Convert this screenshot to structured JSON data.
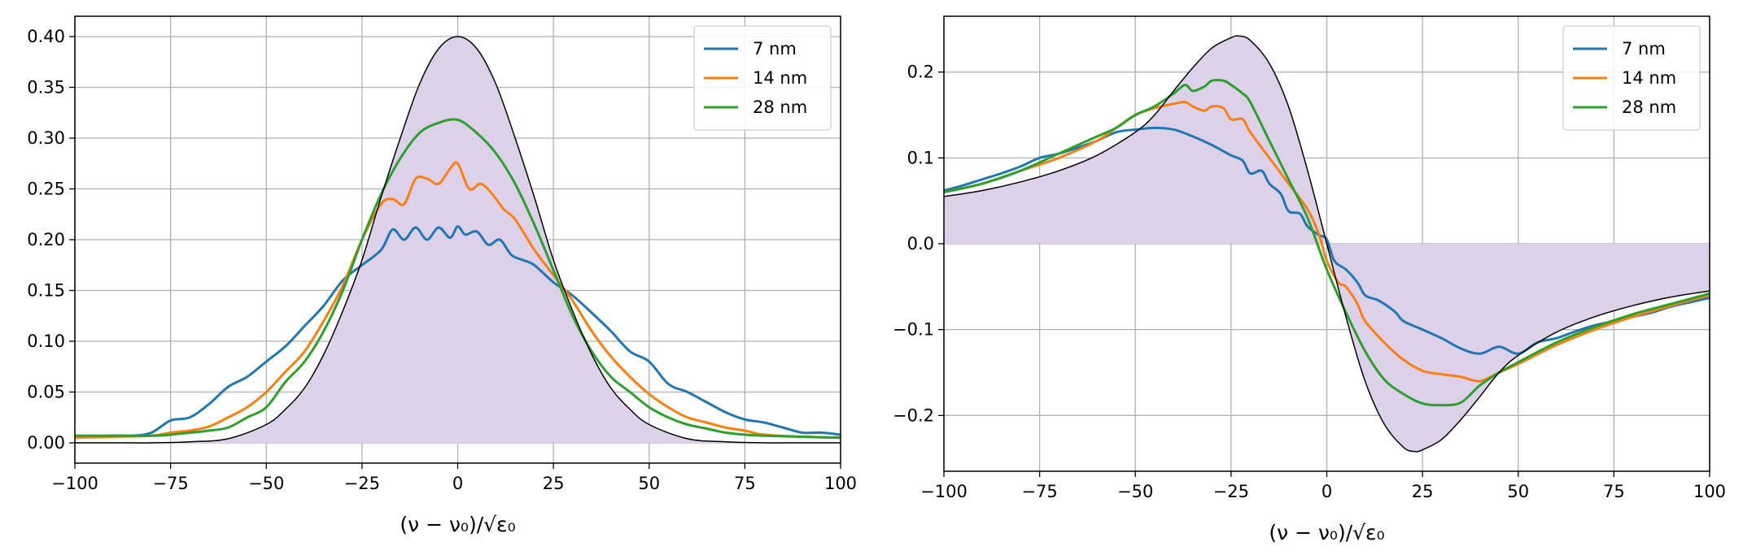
{
  "chart_data": [
    {
      "type": "line",
      "xlabel": "(ν − ν₀)/√ε₀",
      "xlim": [
        -100,
        100
      ],
      "ylim": [
        -0.02,
        0.42
      ],
      "xticks": [
        -100,
        -75,
        -50,
        -25,
        0,
        25,
        50,
        75,
        100
      ],
      "xtick_labels": [
        "−100",
        "−75",
        "−50",
        "−25",
        "0",
        "25",
        "50",
        "75",
        "100"
      ],
      "yticks": [
        0.0,
        0.05,
        0.1,
        0.15,
        0.2,
        0.25,
        0.3,
        0.35,
        0.4
      ],
      "ytick_labels": [
        "0.00",
        "0.05",
        "0.10",
        "0.15",
        "0.20",
        "0.25",
        "0.30",
        "0.35",
        "0.40"
      ],
      "grid": true,
      "legend_position": "top-right",
      "reference_curve": {
        "color": "#000000",
        "fill_color": "#ddd1ea",
        "x": [
          -100,
          -90,
          -80,
          -70,
          -60,
          -50,
          -45,
          -40,
          -35,
          -30,
          -25,
          -20,
          -15,
          -10,
          -5,
          0,
          5,
          10,
          15,
          20,
          25,
          30,
          35,
          40,
          45,
          50,
          60,
          70,
          80,
          90,
          100
        ],
        "y": [
          0.0,
          0.0,
          0.0,
          0.001,
          0.004,
          0.018,
          0.033,
          0.054,
          0.087,
          0.13,
          0.18,
          0.242,
          0.3,
          0.353,
          0.388,
          0.4,
          0.388,
          0.353,
          0.3,
          0.242,
          0.18,
          0.13,
          0.087,
          0.054,
          0.033,
          0.018,
          0.004,
          0.001,
          0.0,
          0.0,
          0.0
        ]
      },
      "series": [
        {
          "name": "7 nm",
          "color": "#1f77b4",
          "x": [
            -100,
            -90,
            -85,
            -80,
            -75,
            -70,
            -65,
            -60,
            -55,
            -50,
            -45,
            -40,
            -35,
            -30,
            -25,
            -20,
            -17,
            -14,
            -11,
            -8,
            -5,
            -2,
            0,
            2,
            5,
            8,
            11,
            14,
            17,
            20,
            25,
            30,
            35,
            40,
            45,
            50,
            55,
            60,
            65,
            70,
            75,
            80,
            85,
            90,
            95,
            100
          ],
          "y": [
            0.005,
            0.007,
            0.007,
            0.01,
            0.022,
            0.025,
            0.038,
            0.055,
            0.065,
            0.08,
            0.095,
            0.115,
            0.135,
            0.16,
            0.175,
            0.19,
            0.21,
            0.2,
            0.212,
            0.2,
            0.212,
            0.202,
            0.213,
            0.205,
            0.208,
            0.195,
            0.2,
            0.185,
            0.18,
            0.175,
            0.158,
            0.145,
            0.128,
            0.11,
            0.09,
            0.08,
            0.058,
            0.05,
            0.04,
            0.03,
            0.023,
            0.02,
            0.015,
            0.01,
            0.01,
            0.008
          ]
        },
        {
          "name": "14 nm",
          "color": "#ff7f0e",
          "x": [
            -100,
            -90,
            -80,
            -75,
            -70,
            -65,
            -60,
            -55,
            -50,
            -45,
            -40,
            -35,
            -30,
            -25,
            -20,
            -17,
            -14,
            -11,
            -8,
            -5,
            -2,
            0,
            3,
            6,
            9,
            12,
            15,
            20,
            25,
            30,
            35,
            40,
            45,
            50,
            55,
            60,
            65,
            70,
            75,
            80,
            90,
            100
          ],
          "y": [
            0.005,
            0.006,
            0.007,
            0.01,
            0.012,
            0.016,
            0.025,
            0.035,
            0.05,
            0.07,
            0.09,
            0.12,
            0.155,
            0.2,
            0.235,
            0.24,
            0.235,
            0.26,
            0.26,
            0.255,
            0.27,
            0.275,
            0.25,
            0.255,
            0.245,
            0.23,
            0.22,
            0.19,
            0.165,
            0.14,
            0.11,
            0.085,
            0.065,
            0.048,
            0.035,
            0.025,
            0.02,
            0.015,
            0.012,
            0.008,
            0.006,
            0.005
          ]
        },
        {
          "name": "28 nm",
          "color": "#2ca02c",
          "x": [
            -100,
            -90,
            -80,
            -75,
            -70,
            -65,
            -60,
            -55,
            -50,
            -45,
            -40,
            -35,
            -30,
            -25,
            -20,
            -15,
            -10,
            -5,
            0,
            5,
            10,
            15,
            20,
            25,
            30,
            35,
            40,
            45,
            50,
            55,
            60,
            65,
            70,
            75,
            80,
            90,
            100
          ],
          "y": [
            0.007,
            0.007,
            0.007,
            0.008,
            0.01,
            0.012,
            0.015,
            0.025,
            0.035,
            0.06,
            0.08,
            0.11,
            0.15,
            0.2,
            0.245,
            0.28,
            0.305,
            0.315,
            0.318,
            0.305,
            0.285,
            0.255,
            0.215,
            0.17,
            0.125,
            0.09,
            0.065,
            0.05,
            0.035,
            0.025,
            0.018,
            0.014,
            0.01,
            0.008,
            0.007,
            0.006,
            0.005
          ]
        }
      ]
    },
    {
      "type": "line",
      "xlabel": "(ν − ν₀)/√ε₀",
      "xlim": [
        -100,
        100
      ],
      "ylim": [
        -0.265,
        0.265
      ],
      "xticks": [
        -100,
        -75,
        -50,
        -25,
        0,
        25,
        50,
        75,
        100
      ],
      "xtick_labels": [
        "−100",
        "−75",
        "−50",
        "−25",
        "0",
        "25",
        "50",
        "75",
        "100"
      ],
      "yticks": [
        -0.2,
        -0.1,
        0.0,
        0.1,
        0.2
      ],
      "ytick_labels": [
        "−0.2",
        "−0.1",
        "0.0",
        "0.1",
        "0.2"
      ],
      "grid": true,
      "legend_position": "top-right",
      "reference_curve": {
        "color": "#000000",
        "fill_color": "#ddd1ea",
        "x": [
          -100,
          -90,
          -80,
          -70,
          -60,
          -50,
          -45,
          -40,
          -35,
          -30,
          -25,
          -23,
          -20,
          -15,
          -10,
          -5,
          0,
          5,
          10,
          15,
          20,
          23,
          25,
          30,
          35,
          40,
          45,
          50,
          60,
          70,
          80,
          90,
          100
        ],
        "y": [
          0.055,
          0.062,
          0.072,
          0.085,
          0.103,
          0.13,
          0.15,
          0.178,
          0.205,
          0.228,
          0.24,
          0.242,
          0.237,
          0.21,
          0.16,
          0.085,
          0.0,
          -0.085,
          -0.16,
          -0.21,
          -0.237,
          -0.242,
          -0.24,
          -0.228,
          -0.205,
          -0.178,
          -0.15,
          -0.13,
          -0.103,
          -0.085,
          -0.072,
          -0.062,
          -0.055
        ]
      },
      "series": [
        {
          "name": "7 nm",
          "color": "#1f77b4",
          "x": [
            -100,
            -95,
            -90,
            -85,
            -80,
            -75,
            -70,
            -65,
            -60,
            -55,
            -50,
            -45,
            -40,
            -35,
            -30,
            -25,
            -22,
            -20,
            -17,
            -15,
            -12,
            -10,
            -7,
            -5,
            -2,
            0,
            2,
            5,
            8,
            10,
            13,
            15,
            18,
            20,
            25,
            30,
            35,
            40,
            45,
            50,
            55,
            60,
            65,
            70,
            75,
            80,
            85,
            90,
            95,
            100
          ],
          "y": [
            0.062,
            0.068,
            0.075,
            0.082,
            0.09,
            0.1,
            0.105,
            0.112,
            0.12,
            0.13,
            0.133,
            0.135,
            0.133,
            0.125,
            0.115,
            0.103,
            0.097,
            0.082,
            0.085,
            0.07,
            0.058,
            0.038,
            0.035,
            0.02,
            0.01,
            0.005,
            -0.02,
            -0.03,
            -0.045,
            -0.06,
            -0.065,
            -0.07,
            -0.08,
            -0.09,
            -0.1,
            -0.11,
            -0.122,
            -0.128,
            -0.12,
            -0.128,
            -0.115,
            -0.11,
            -0.102,
            -0.095,
            -0.09,
            -0.085,
            -0.08,
            -0.073,
            -0.068,
            -0.063
          ]
        },
        {
          "name": "14 nm",
          "color": "#ff7f0e",
          "x": [
            -100,
            -90,
            -80,
            -70,
            -60,
            -55,
            -50,
            -45,
            -40,
            -37,
            -35,
            -32,
            -30,
            -27,
            -25,
            -22,
            -20,
            -15,
            -10,
            -5,
            -2,
            0,
            3,
            5,
            8,
            10,
            15,
            20,
            25,
            30,
            35,
            40,
            45,
            50,
            60,
            70,
            80,
            90,
            100
          ],
          "y": [
            0.06,
            0.07,
            0.085,
            0.1,
            0.12,
            0.135,
            0.15,
            0.158,
            0.163,
            0.165,
            0.16,
            0.155,
            0.16,
            0.158,
            0.145,
            0.145,
            0.13,
            0.1,
            0.07,
            0.04,
            0.01,
            -0.02,
            -0.045,
            -0.05,
            -0.07,
            -0.09,
            -0.115,
            -0.135,
            -0.148,
            -0.152,
            -0.155,
            -0.16,
            -0.15,
            -0.14,
            -0.118,
            -0.1,
            -0.085,
            -0.072,
            -0.06
          ]
        },
        {
          "name": "28 nm",
          "color": "#2ca02c",
          "x": [
            -100,
            -90,
            -80,
            -70,
            -60,
            -55,
            -50,
            -45,
            -40,
            -37,
            -35,
            -32,
            -30,
            -27,
            -25,
            -22,
            -20,
            -15,
            -10,
            -5,
            0,
            5,
            10,
            15,
            20,
            25,
            30,
            35,
            40,
            45,
            50,
            60,
            70,
            80,
            90,
            100
          ],
          "y": [
            0.06,
            0.07,
            0.085,
            0.105,
            0.125,
            0.135,
            0.15,
            0.16,
            0.175,
            0.185,
            0.178,
            0.183,
            0.19,
            0.19,
            0.185,
            0.175,
            0.165,
            0.12,
            0.075,
            0.03,
            -0.03,
            -0.08,
            -0.125,
            -0.158,
            -0.175,
            -0.186,
            -0.188,
            -0.185,
            -0.165,
            -0.15,
            -0.138,
            -0.115,
            -0.097,
            -0.082,
            -0.07,
            -0.058
          ]
        }
      ]
    }
  ]
}
